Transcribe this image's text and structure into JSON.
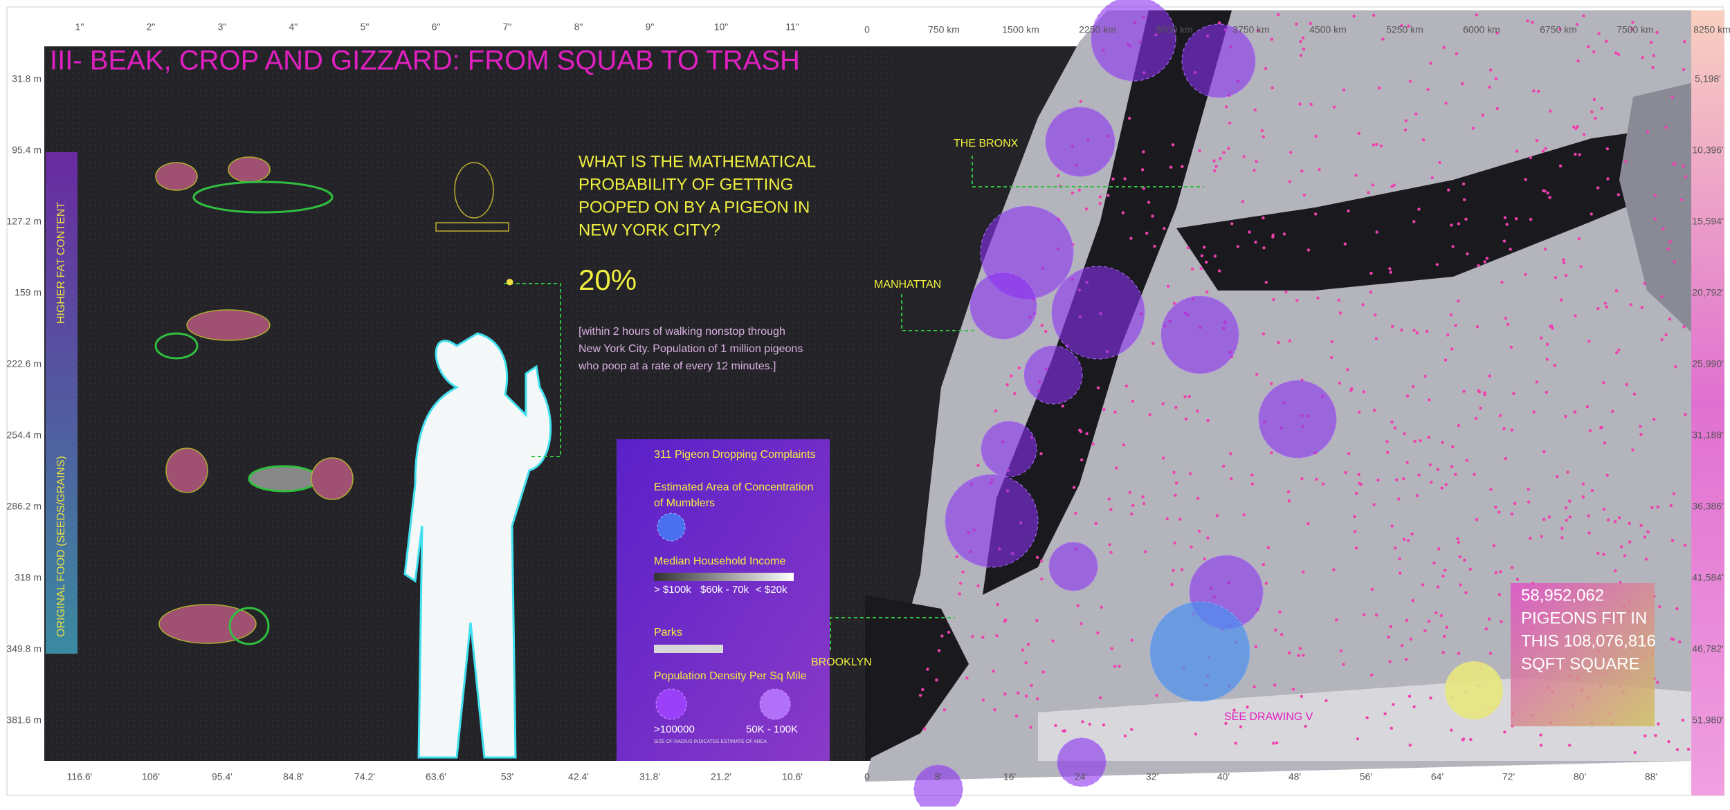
{
  "header": {
    "title": "III- BEAK, CROP AND GIZZARD: FROM SQUAB TO TRASH"
  },
  "rulers": {
    "top_inches": [
      "1\"",
      "2\"",
      "3\"",
      "4\"",
      "5\"",
      "6\"",
      "7\"",
      "8\"",
      "9\"",
      "10\"",
      "11\""
    ],
    "top_km": [
      "0",
      "750 km",
      "1500 km",
      "2250 km",
      "3000 km",
      "3750 km",
      "4500 km",
      "5250 km",
      "6000 km",
      "6750 km",
      "7500 km",
      "8250 km"
    ],
    "left_m": [
      "31.8 m",
      "95.4 m",
      "127.2 m",
      "159 m",
      "222.6 m",
      "254.4 m",
      "286.2 m",
      "318 m",
      "349.8 m",
      "381.6 m"
    ],
    "bottom_ft": [
      "116.6'",
      "106'",
      "95.4'",
      "84.8'",
      "74.2'",
      "63.6'",
      "53'",
      "42.4'",
      "31.8'",
      "21.2'",
      "10.6'"
    ],
    "bottom_map": [
      "0",
      "8'",
      "16'",
      "24'",
      "32'",
      "40'",
      "48'",
      "56'",
      "64'",
      "72'",
      "80'",
      "88'"
    ],
    "right_ft": [
      "5,198'",
      "10,396'",
      "15,594'",
      "20,792'",
      "25,990'",
      "31,188'",
      "36,386'",
      "41,584'",
      "46,782'",
      "51,980'"
    ]
  },
  "side_bar": {
    "top_label": "HIGHER FAT CONTENT",
    "bottom_label": "ORIGINAL FOOD (SEEDS/GRAINS)"
  },
  "question": {
    "lines": [
      "WHAT IS THE MATHEMATICAL",
      "PROBABILITY OF GETTING",
      "POOPED ON BY A PIGEON IN",
      "NEW YORK CITY?"
    ],
    "answer": "20%",
    "note": [
      "[within 2 hours of walking nonstop through",
      "New York City. Population of 1 million pigeons",
      "who poop at a rate of every 12 minutes.]"
    ]
  },
  "legend": {
    "complaints": "311 Pigeon Dropping Complaints",
    "mumblers": [
      "Estimated Area of Concentration",
      "of Mumblers"
    ],
    "income": "Median Household Income",
    "income_labels": [
      "> $100k",
      "$60k - 70k",
      "< $20k"
    ],
    "parks": "Parks",
    "density": "Population Density Per Sq Mile",
    "density_labels": [
      ">100000",
      "50K - 100K"
    ],
    "note": "SIZE OF RADIUS INDICATES ESTIMATE OF AREA"
  },
  "map_labels": {
    "bronx": "THE BRONX",
    "manhattan": "MANHATTAN",
    "brooklyn": "BROOKLYN",
    "see": "SEE DRAWING V"
  },
  "callout": {
    "lines": [
      "58,952,062",
      "PIGEONS FIT IN",
      "THIS 108,076,816",
      "SQFT SQUARE"
    ]
  }
}
